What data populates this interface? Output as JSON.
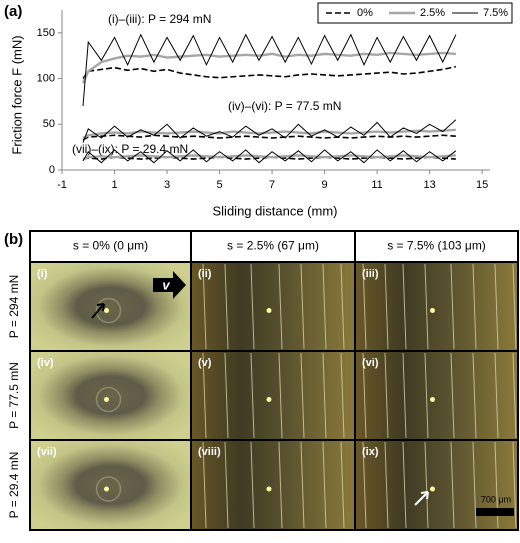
{
  "chart_data": {
    "type": "line",
    "panel_label": "(a)",
    "x_label": "Sliding distance (mm)",
    "y_label": "Friction force F (mN)",
    "x": [
      -0.2,
      0,
      0.5,
      1,
      1.5,
      2,
      2.5,
      3,
      3.5,
      4,
      4.5,
      5,
      5.5,
      6,
      6.5,
      7,
      7.5,
      8,
      8.5,
      9,
      9.5,
      10,
      10.5,
      11,
      11.5,
      12,
      12.5,
      13,
      13.5,
      14
    ],
    "series": [
      {
        "name": "0%",
        "color": "#000000",
        "dash": true,
        "width": 1.6,
        "values": [
          100,
          108,
          110,
          112,
          109,
          111,
          108,
          110,
          106,
          104,
          102,
          101,
          102,
          103,
          104,
          103,
          102,
          104,
          105,
          104,
          103,
          104,
          105,
          106,
          107,
          105,
          106,
          108,
          110,
          113
        ]
      },
      {
        "name": "2.5%",
        "color": "#a6a6a6",
        "dash": false,
        "width": 2.4,
        "values": [
          95,
          108,
          118,
          122,
          125,
          124,
          126,
          123,
          124,
          125,
          126,
          124,
          125,
          126,
          125,
          127,
          124,
          126,
          125,
          127,
          126,
          125,
          127,
          126,
          128,
          127,
          126,
          127,
          128,
          127
        ]
      },
      {
        "name": "7.5%",
        "color": "#000000",
        "dash": false,
        "width": 1,
        "values": [
          70,
          140,
          120,
          145,
          115,
          148,
          118,
          145,
          120,
          147,
          115,
          145,
          118,
          148,
          120,
          146,
          118,
          145,
          116,
          147,
          120,
          148,
          115,
          145,
          118,
          146,
          120,
          147,
          118,
          148
        ]
      },
      {
        "name": "0%",
        "color": "#000000",
        "dash": true,
        "width": 1.6,
        "values": [
          33,
          36,
          37,
          38,
          37,
          36,
          38,
          37,
          36,
          37,
          36,
          35,
          36,
          37,
          36,
          35,
          36,
          37,
          36,
          35,
          36,
          35,
          36,
          37,
          36,
          37,
          36,
          37,
          38,
          37
        ]
      },
      {
        "name": "2.5%",
        "color": "#a6a6a6",
        "dash": false,
        "width": 2.4,
        "values": [
          35,
          38,
          40,
          41,
          40,
          42,
          41,
          40,
          41,
          42,
          41,
          40,
          42,
          41,
          40,
          41,
          42,
          41,
          40,
          42,
          41,
          40,
          41,
          42,
          41,
          42,
          43,
          42,
          43,
          44
        ]
      },
      {
        "name": "7.5%",
        "color": "#000000",
        "dash": false,
        "width": 1,
        "values": [
          30,
          45,
          35,
          48,
          36,
          44,
          38,
          50,
          35,
          46,
          37,
          42,
          36,
          48,
          38,
          45,
          35,
          50,
          37,
          44,
          36,
          47,
          38,
          52,
          36,
          46,
          40,
          50,
          42,
          55
        ]
      },
      {
        "name": "0%",
        "color": "#000000",
        "dash": true,
        "width": 1.6,
        "values": [
          12,
          13,
          12,
          14,
          13,
          12,
          13,
          14,
          13,
          12,
          13,
          14,
          13,
          12,
          13,
          14,
          13,
          12,
          13,
          14,
          13,
          12,
          13,
          14,
          13,
          12,
          13,
          14,
          13,
          12
        ]
      },
      {
        "name": "2.5%",
        "color": "#a6a6a6",
        "dash": false,
        "width": 2.4,
        "values": [
          12,
          14,
          15,
          14,
          15,
          16,
          15,
          14,
          15,
          16,
          15,
          14,
          15,
          16,
          15,
          14,
          15,
          16,
          15,
          14,
          15,
          16,
          15,
          14,
          15,
          16,
          15,
          14,
          15,
          16
        ]
      },
      {
        "name": "7.5%",
        "color": "#000000",
        "dash": false,
        "width": 1,
        "values": [
          10,
          20,
          8,
          22,
          10,
          20,
          8,
          21,
          10,
          22,
          9,
          20,
          10,
          22,
          8,
          20,
          10,
          21,
          9,
          22,
          10,
          20,
          8,
          22,
          10,
          21,
          9,
          20,
          10,
          21
        ]
      }
    ],
    "annotations": [
      "(i)–(iii): P = 294 mN",
      "(iv)–(vi): P = 77.5 mN",
      "(vii)–(ix): P = 29.4 mN"
    ],
    "xlim": [
      -1,
      15.3
    ],
    "xticks": [
      -1,
      1,
      3,
      5,
      7,
      9,
      11,
      13,
      15
    ],
    "ylim": [
      0,
      175
    ],
    "yticks": [
      0,
      50,
      100,
      150
    ],
    "grid": false
  },
  "micrographs": {
    "panel_label": "(b)",
    "columns": [
      "s = 0% (0 μm)",
      "s = 2.5% (67 μm)",
      "s = 7.5% (103 μm)"
    ],
    "rows": [
      "P = 294 mN",
      "P = 77.5 mN",
      "P = 29.4 mN"
    ],
    "panels": [
      [
        "(i)",
        "(ii)",
        "(iii)"
      ],
      [
        "(iv)",
        "(v)",
        "(vi)"
      ],
      [
        "(vii)",
        "(viii)",
        "(ix)"
      ]
    ],
    "velocity": "v",
    "scale_bar": "700 μm"
  }
}
